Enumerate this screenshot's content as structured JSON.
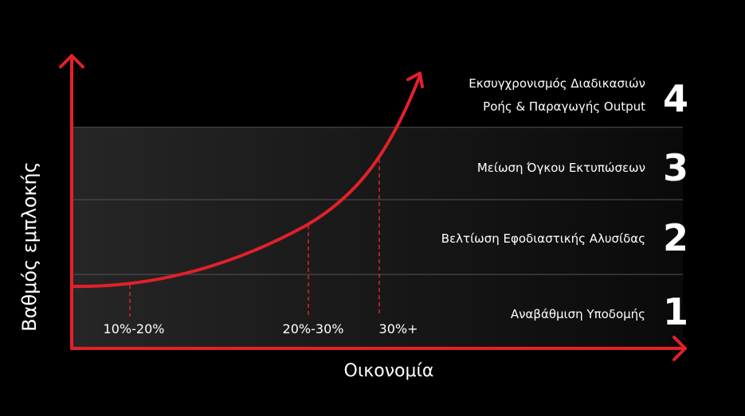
{
  "y_axis_label": "Βαθμός εμπλοκής",
  "x_axis_label": "Οικονομία",
  "markers": [
    "10%-20%",
    "20%-30%",
    "30%+"
  ],
  "levels": [
    {
      "number": "1",
      "lines": [
        "Αναβάθμιση Υποδομής"
      ]
    },
    {
      "number": "2",
      "lines": [
        "Βελτίωση Εφοδιαστικής Αλυσίδας"
      ]
    },
    {
      "number": "3",
      "lines": [
        "Μείωση Όγκου Εκτυπώσεων"
      ]
    },
    {
      "number": "4",
      "lines": [
        "Εκσυγχρονισμός Διαδικασιών",
        "Ροής & Παραγωγής Output"
      ]
    }
  ]
}
